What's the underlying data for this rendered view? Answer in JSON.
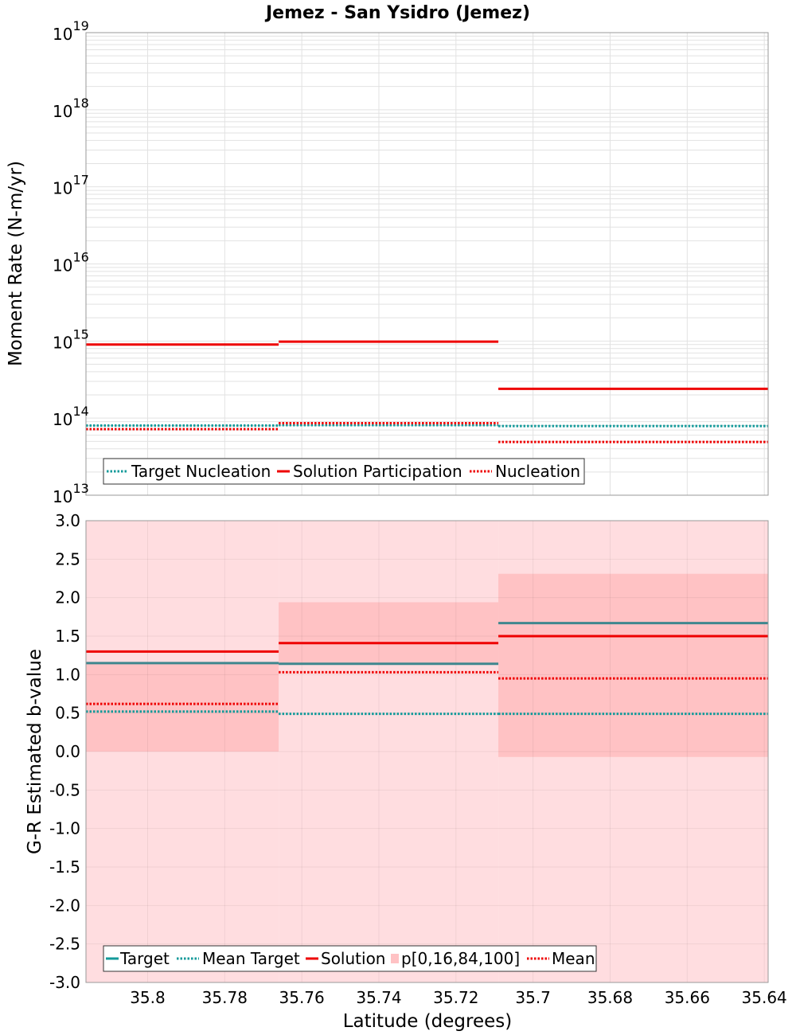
{
  "title": "Jemez - San Ysidro (Jemez)",
  "colors": {
    "target": "#139a9a",
    "target_solid": "#3f878e",
    "solution": "#ee0000",
    "band_outer": "#ffdde0",
    "band_inner": "#ffc2c4",
    "grid": "#e2e2e2",
    "frame": "#999999"
  },
  "chart_data": [
    {
      "type": "line",
      "panel": "top",
      "y_scale": "log",
      "ylabel": "Moment Rate (N-m/yr)",
      "xlabel": "",
      "x_reversed": true,
      "xlim": [
        35.816,
        35.639
      ],
      "ylim": [
        10000000000000.0,
        1e+19
      ],
      "y_ticks": [
        {
          "base": "10",
          "exp": "13",
          "value": 10000000000000.0
        },
        {
          "base": "10",
          "exp": "14",
          "value": 100000000000000.0
        },
        {
          "base": "10",
          "exp": "15",
          "value": 1000000000000000.0
        },
        {
          "base": "10",
          "exp": "16",
          "value": 1e+16
        },
        {
          "base": "10",
          "exp": "17",
          "value": 1e+17
        },
        {
          "base": "10",
          "exp": "18",
          "value": 1e+18
        },
        {
          "base": "10",
          "exp": "19",
          "value": 1e+19
        }
      ],
      "bin_edges": [
        35.816,
        35.766,
        35.709,
        35.639
      ],
      "series": [
        {
          "name": "Target Nucleation",
          "style": "dotted",
          "color": "target",
          "values": [
            80000000000000.0,
            81000000000000.0,
            79000000000000.0
          ]
        },
        {
          "name": "Solution Participation",
          "style": "solid",
          "color": "solution",
          "values": [
            900000000000000.0,
            980000000000000.0,
            240000000000000.0
          ]
        },
        {
          "name": "Nucleation",
          "style": "dotted",
          "color": "solution",
          "values": [
            72000000000000.0,
            86000000000000.0,
            49000000000000.0
          ]
        }
      ],
      "legend_position": "bottom-left",
      "grid": true
    },
    {
      "type": "line",
      "panel": "bottom",
      "ylabel": "G-R Estimated b-value",
      "xlabel": "Latitude (degrees)",
      "x_reversed": true,
      "xlim": [
        35.816,
        35.639
      ],
      "ylim": [
        -3.0,
        3.0
      ],
      "y_ticks": [
        "3.0",
        "2.5",
        "2.0",
        "1.5",
        "1.0",
        "0.5",
        "0.0",
        "-0.5",
        "-1.0",
        "-1.5",
        "-2.0",
        "-2.5",
        "-3.0"
      ],
      "x_ticks": [
        "35.8",
        "35.78",
        "35.76",
        "35.74",
        "35.72",
        "35.7",
        "35.68",
        "35.66",
        "35.64"
      ],
      "bin_edges": [
        35.816,
        35.766,
        35.709,
        35.639
      ],
      "series": [
        {
          "name": "Target",
          "style": "solid",
          "color": "target_solid",
          "values": [
            1.15,
            1.14,
            1.67
          ]
        },
        {
          "name": "Mean Target",
          "style": "dotted",
          "color": "target",
          "values": [
            0.52,
            0.49,
            0.49
          ]
        },
        {
          "name": "Solution",
          "style": "solid",
          "color": "solution",
          "values": [
            1.3,
            1.41,
            1.5
          ]
        },
        {
          "name": "Mean",
          "style": "dotted",
          "color": "solution",
          "values": [
            0.62,
            1.03,
            0.95
          ]
        }
      ],
      "bands": {
        "name": "p[0,16,84,100]",
        "outer": [
          [
            -3.0,
            3.0
          ],
          [
            -3.0,
            3.0
          ],
          [
            -3.0,
            3.0
          ]
        ],
        "inner": [
          [
            0.0,
            1.15
          ],
          [
            1.13,
            1.94
          ],
          [
            -0.07,
            2.31
          ]
        ]
      },
      "legend_position": "bottom-left",
      "grid": true
    }
  ]
}
